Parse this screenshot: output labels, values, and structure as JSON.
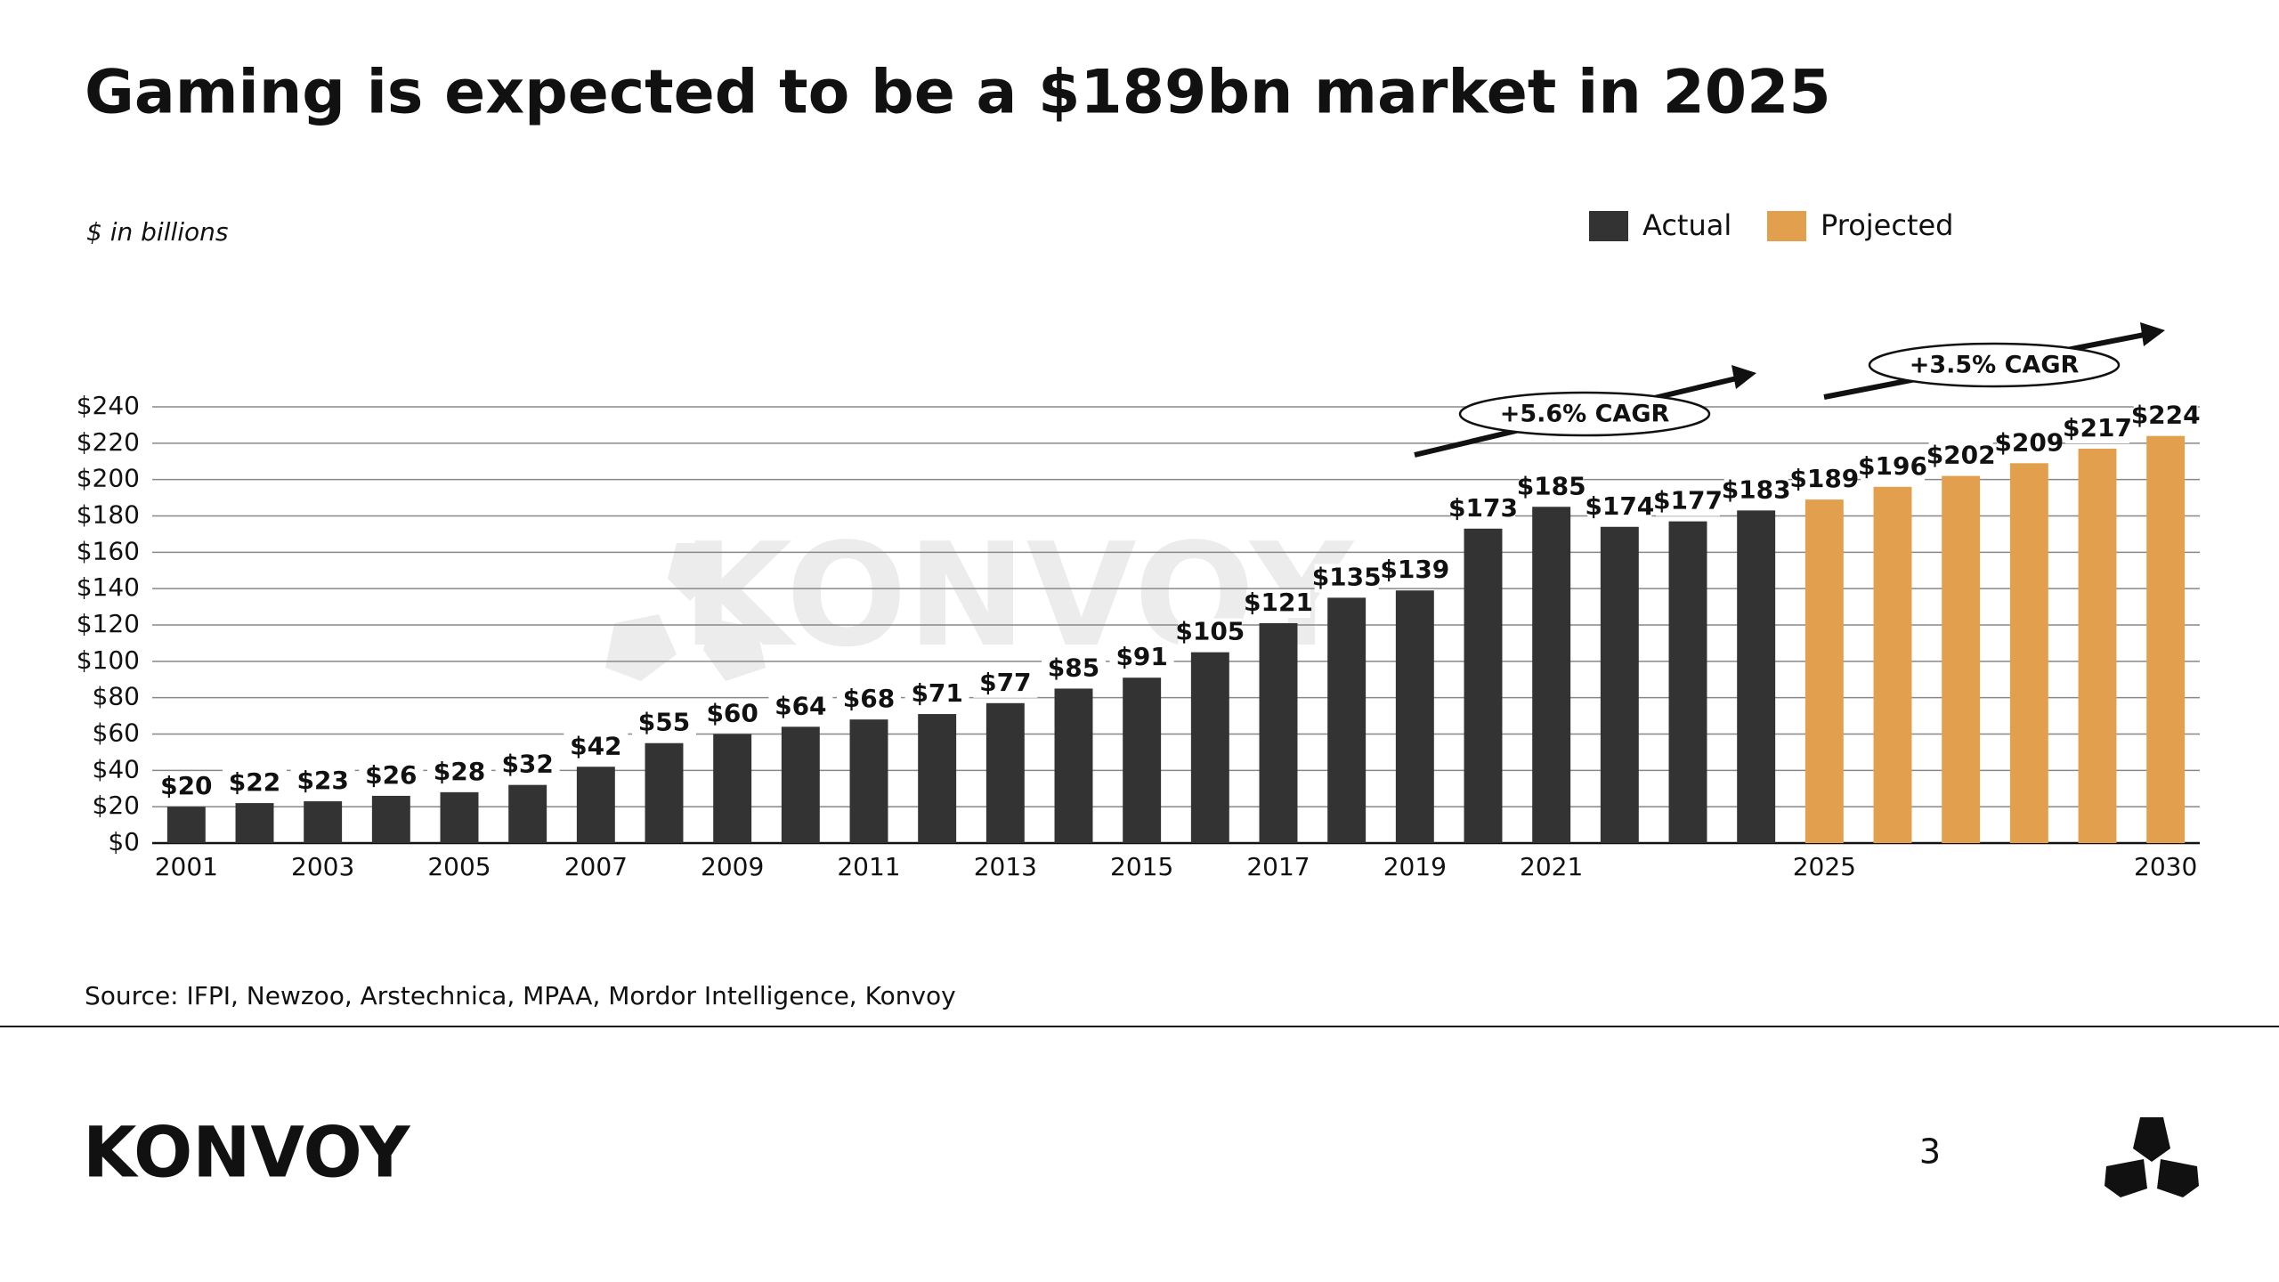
{
  "chart_data": {
    "type": "bar",
    "title": "Gaming is expected to be a $189bn market in 2025",
    "subtitle": "$ in billions",
    "watermark": "KONVOY",
    "source": "Source: IFPI, Newzoo, Arstechnica, MPAA, Mordor Intelligence, Konvoy",
    "annotations": [
      "+5.6% CAGR",
      "+3.5% CAGR"
    ],
    "categories": [
      "2001",
      null,
      "2003",
      null,
      "2005",
      null,
      "2007",
      null,
      "2009",
      null,
      "2011",
      null,
      "2013",
      null,
      "2015",
      null,
      "2017",
      null,
      "2019",
      null,
      "2021",
      null,
      null,
      null,
      "2025",
      null,
      null,
      null,
      null,
      "2030"
    ],
    "series": [
      {
        "name": "Actual",
        "color": "#333333",
        "values": [
          20,
          22,
          23,
          26,
          28,
          32,
          42,
          55,
          60,
          64,
          68,
          71,
          77,
          85,
          91,
          105,
          121,
          135,
          139,
          173,
          185,
          174,
          177,
          183,
          null,
          null,
          null,
          null,
          null,
          null
        ],
        "value_labels": [
          "$20",
          "$22",
          "$23",
          "$26",
          "$28",
          "$32",
          "$42",
          "$55",
          "$60",
          "$64",
          "$68",
          "$71",
          "$77",
          "$85",
          "$91",
          "$105",
          "$121",
          "$135",
          "$139",
          "$173",
          "$185",
          "$174",
          "$177",
          "$183",
          null,
          null,
          null,
          null,
          null,
          null
        ]
      },
      {
        "name": "Projected",
        "color": "#e2a04e",
        "values": [
          null,
          null,
          null,
          null,
          null,
          null,
          null,
          null,
          null,
          null,
          null,
          null,
          null,
          null,
          null,
          null,
          null,
          null,
          null,
          null,
          null,
          null,
          null,
          null,
          189,
          196,
          202,
          209,
          217,
          224
        ],
        "value_labels": [
          null,
          null,
          null,
          null,
          null,
          null,
          null,
          null,
          null,
          null,
          null,
          null,
          null,
          null,
          null,
          null,
          null,
          null,
          null,
          null,
          null,
          null,
          null,
          null,
          "$189",
          "$196",
          "$202",
          "$209",
          "$217",
          "$224"
        ]
      }
    ],
    "ylim": [
      0,
      240
    ],
    "yticks": [
      {
        "value": 0,
        "label": "$0"
      },
      {
        "value": 20,
        "label": "$20"
      },
      {
        "value": 40,
        "label": "$40"
      },
      {
        "value": 60,
        "label": "$60"
      },
      {
        "value": 80,
        "label": "$80"
      },
      {
        "value": 100,
        "label": "$100"
      },
      {
        "value": 120,
        "label": "$120"
      },
      {
        "value": 140,
        "label": "$140"
      },
      {
        "value": 160,
        "label": "$160"
      },
      {
        "value": 180,
        "label": "$180"
      },
      {
        "value": 200,
        "label": "$200"
      },
      {
        "value": 220,
        "label": "$220"
      },
      {
        "value": 240,
        "label": "$240"
      }
    ],
    "grid": true
  },
  "footer": {
    "logo": "KONVOY",
    "page": "3"
  }
}
